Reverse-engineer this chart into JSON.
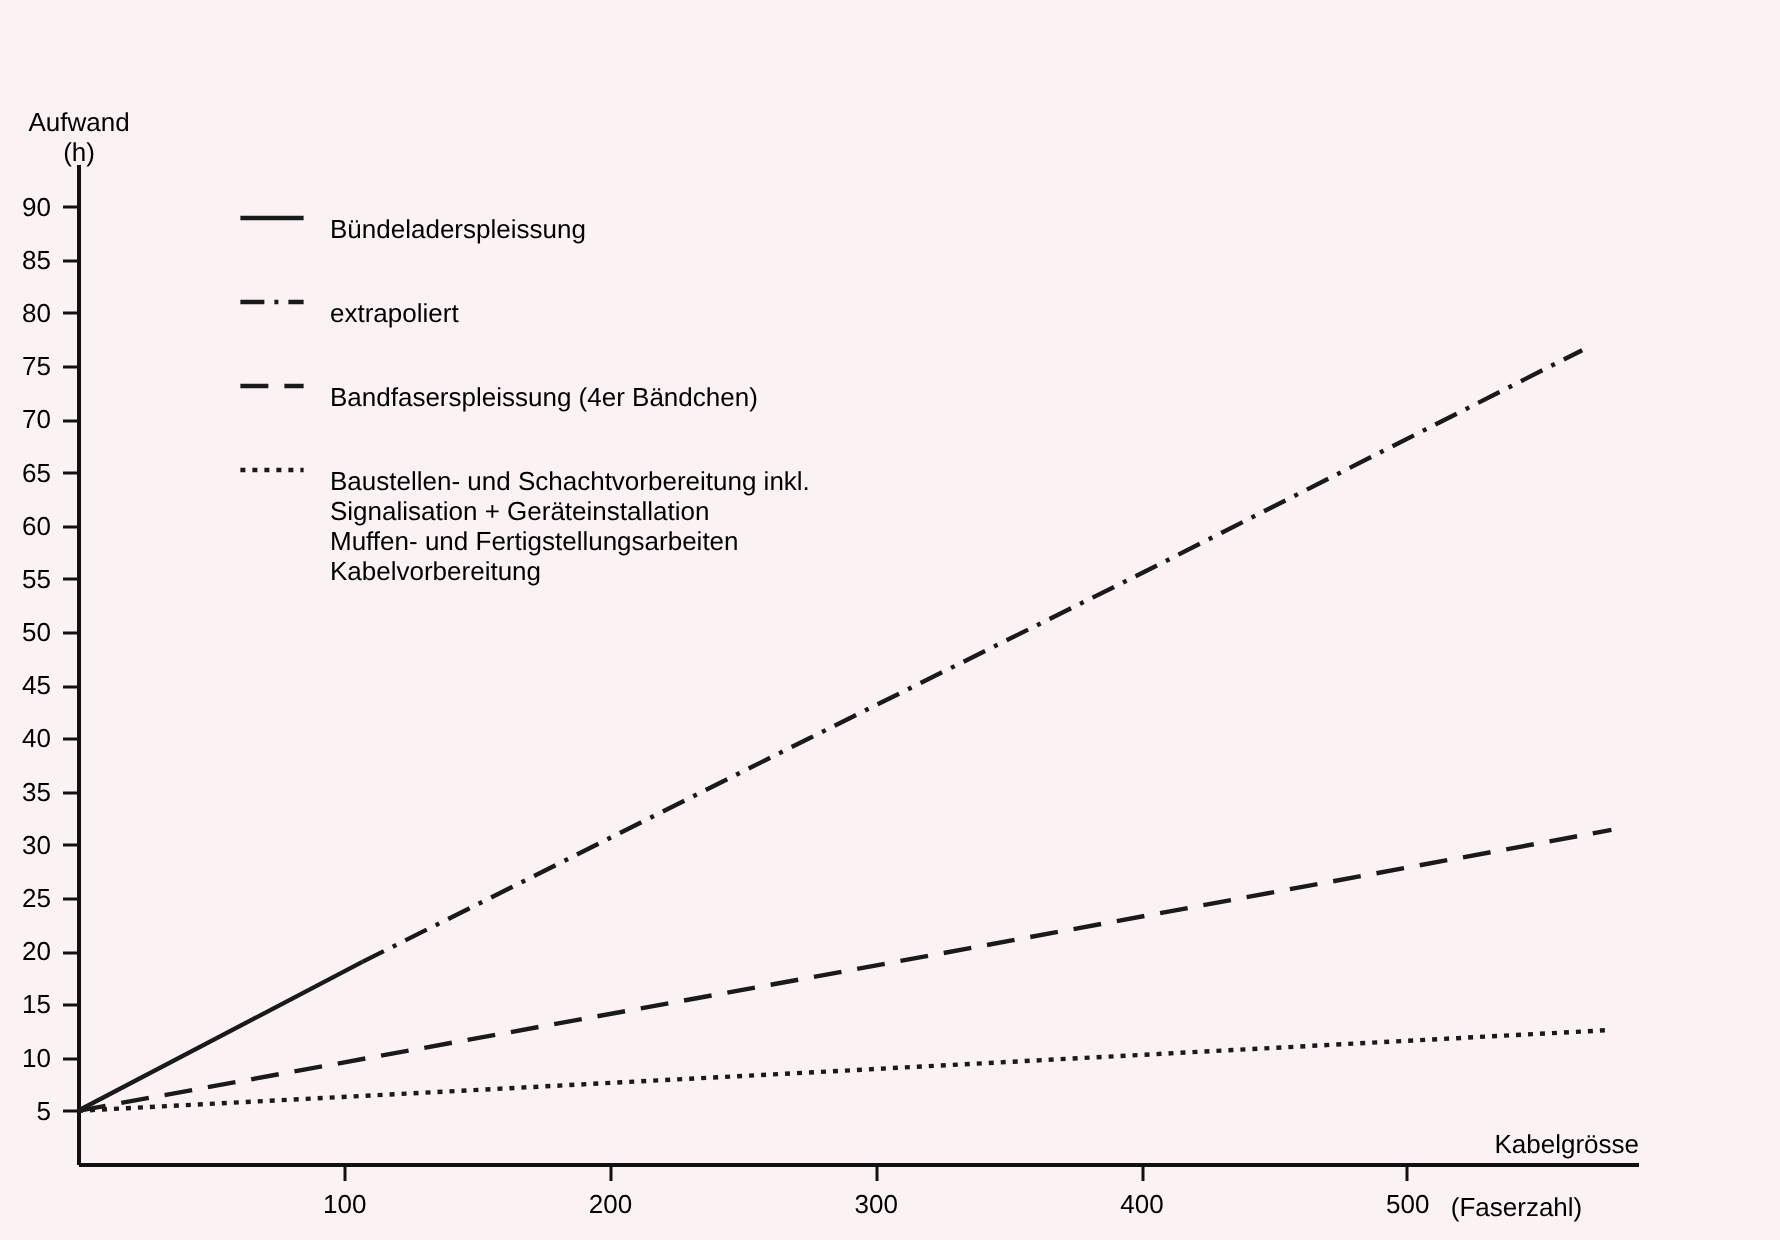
{
  "chart_data": {
    "type": "line",
    "xlabel": "Kabelgrösse",
    "ylabel": "Aufwand\n(h)",
    "xlim": [
      0,
      587
    ],
    "ylim": [
      0,
      94
    ],
    "xticks": [
      100,
      200,
      300,
      400,
      500
    ],
    "yticks": [
      5,
      10,
      15,
      20,
      25,
      30,
      35,
      40,
      45,
      50,
      55,
      60,
      65,
      70,
      75,
      80,
      85,
      90
    ],
    "grid": false,
    "legend": "top left",
    "annotations": [
      "(Faserzahl)"
    ],
    "series": [
      {
        "name": "Bündeladerspleissung",
        "color": "#1a1a1a",
        "line_style": "solid",
        "x": [
          0,
          107
        ],
        "values": [
          5,
          19
        ]
      },
      {
        "name": "extrapoliert",
        "color": "#1a1a1a",
        "line_style": "dashdot",
        "x": [
          107,
          275,
          400,
          566
        ],
        "values": [
          19,
          40,
          55.5,
          76.5
        ]
      },
      {
        "name": "Bandfaserspleissung (4er Bändchen)",
        "color": "#1a1a1a",
        "line_style": "dashed",
        "x": [
          0,
          275,
          577
        ],
        "values": [
          5,
          17.5,
          31.4
        ]
      },
      {
        "name": "Baustellen- und Schachtvorbereitung inkl.\nSignalisation + Geräteinstallation\nMuffen- und Fertigstellungsarbeiten\nKabelvorbereitung",
        "color": "#1a1a1a",
        "line_style": "dotted",
        "x": [
          0,
          275,
          577
        ],
        "values": [
          5,
          8.6,
          12.6
        ]
      }
    ]
  }
}
